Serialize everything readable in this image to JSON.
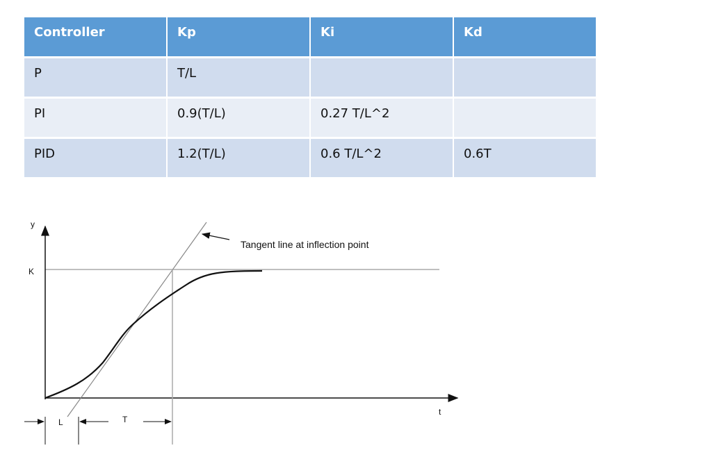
{
  "table": {
    "header": [
      "Controller",
      "Kp",
      "Ki",
      "Kd"
    ],
    "rows": [
      [
        "P",
        "T/L",
        null,
        null
      ],
      [
        "PI",
        "0.9(T/L)",
        "0.27 T/L^2",
        null
      ],
      [
        "PID",
        "1.2(T/L)",
        "0.6 T/L^2",
        "0.6T"
      ]
    ]
  },
  "diagram": {
    "y_label": "y",
    "k_label": "K",
    "t_label": "t",
    "l_label": "L",
    "T_label": "T",
    "annotation": "Tangent line at inflection point"
  }
}
